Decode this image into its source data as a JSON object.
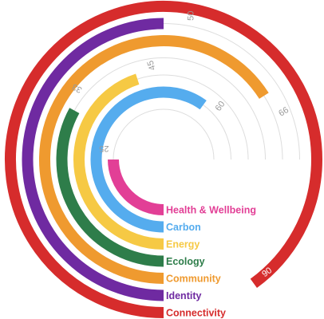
{
  "chart_data": {
    "type": "radial-bar",
    "max": 100,
    "series": [
      {
        "category": "Health & Wellbeing",
        "value": 25,
        "color": "#e23f96"
      },
      {
        "category": "Carbon",
        "value": 60,
        "color": "#55acee"
      },
      {
        "category": "Energy",
        "value": 45,
        "color": "#f6c944"
      },
      {
        "category": "Ecology",
        "value": 33,
        "color": "#2e7d4a"
      },
      {
        "category": "Community",
        "value": 66,
        "color": "#ef9a2f"
      },
      {
        "category": "Identity",
        "value": 50,
        "color": "#6f2aa1"
      },
      {
        "category": "Connectivity",
        "value": 90,
        "color": "#d62c2c"
      }
    ],
    "track_color": "#dddddd",
    "start_angle": "bottom",
    "direction": "clockwise",
    "grid": true,
    "legend": "none"
  }
}
